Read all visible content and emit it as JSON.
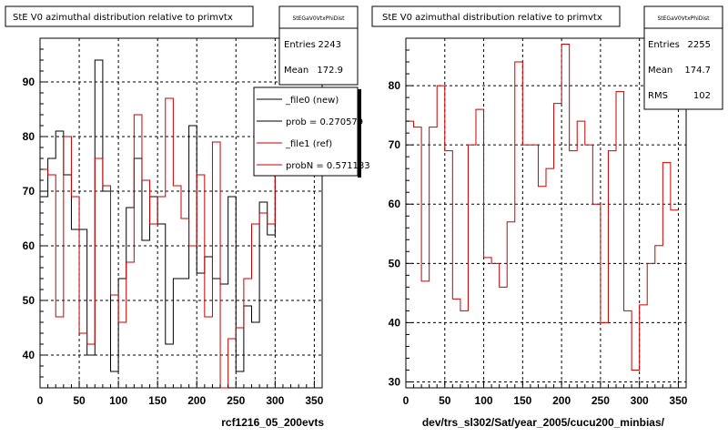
{
  "chart_data": [
    {
      "type": "step",
      "title": "StE V0 azimuthal distribution relative to primvtx",
      "stats": {
        "name": "StEGaV0VtxPhiDist",
        "rows": [
          {
            "label": "Entries",
            "value": "2243"
          },
          {
            "label": "Mean",
            "value": "172.9"
          }
        ]
      },
      "xlim": [
        0,
        360
      ],
      "ylim": [
        34,
        98
      ],
      "xticks": [
        0,
        50,
        100,
        150,
        200,
        250,
        300,
        350
      ],
      "yticks": [
        40,
        50,
        60,
        70,
        80,
        90
      ],
      "xlabel": "rcf1216_05_200evts",
      "grid": true,
      "legend": {
        "placement": "top-right",
        "entries": [
          {
            "label": "_file0 (new)",
            "color": "#000000"
          },
          {
            "label": "prob = 0.270579",
            "color": "#000000"
          },
          {
            "label": "_file1 (ref)",
            "color": "#cc0000"
          },
          {
            "label": "probN = 0.571183",
            "color": "#cc0000"
          }
        ]
      },
      "series": [
        {
          "name": "_file0 (new)",
          "color": "#000000",
          "bin_width": 10,
          "values": [
            69,
            76,
            81,
            73,
            63,
            63,
            40,
            94,
            70,
            37,
            54,
            67,
            76,
            61,
            69,
            64,
            42,
            54,
            54,
            82,
            55,
            58,
            54,
            53,
            69,
            37,
            49,
            46,
            68,
            62,
            79
          ]
        },
        {
          "name": "_file1 (ref)",
          "color": "#cc0000",
          "bin_width": 10,
          "values": [
            74,
            73,
            47,
            80,
            69,
            44,
            42,
            76,
            71,
            51,
            46,
            57,
            84,
            72,
            64,
            69,
            87,
            71,
            65,
            60,
            73,
            47,
            79,
            34,
            43,
            45,
            54,
            64,
            66,
            64,
            83
          ]
        }
      ]
    },
    {
      "type": "step",
      "title": "StE V0 azimuthal distribution relative to primvtx",
      "stats": {
        "name": "StEGaV0VtxPhiDist",
        "rows": [
          {
            "label": "Entries",
            "value": "2255"
          },
          {
            "label": "Mean",
            "value": "174.7"
          },
          {
            "label": "RMS",
            "value": "102"
          }
        ]
      },
      "xlim": [
        0,
        360
      ],
      "ylim": [
        29,
        88
      ],
      "xticks": [
        0,
        50,
        100,
        150,
        200,
        250,
        300,
        350
      ],
      "yticks": [
        30,
        40,
        50,
        60,
        70,
        80
      ],
      "xlabel": "dev/trs_sl302/Sat/year_2005/cucu200_minbias/",
      "grid": true,
      "series": [
        {
          "name": "",
          "color": "#cc0000",
          "bin_width": 10,
          "values": [
            74,
            73,
            47,
            73,
            80,
            69,
            44,
            42,
            70,
            76,
            51,
            50,
            46,
            57,
            84,
            70,
            70,
            63,
            66,
            77,
            87,
            69,
            74,
            70,
            60,
            40,
            69,
            79,
            42,
            32,
            43,
            50,
            53,
            67,
            59
          ]
        }
      ]
    }
  ]
}
